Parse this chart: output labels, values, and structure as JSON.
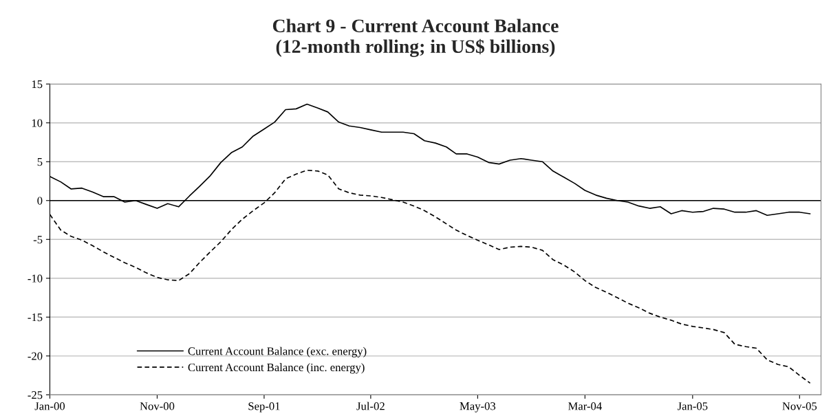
{
  "chart_data": {
    "type": "line",
    "title": "Chart 9 - Current Account Balance\n(12-month rolling; in US$ billions)",
    "x": [
      "2000-01",
      "2000-02",
      "2000-03",
      "2000-04",
      "2000-05",
      "2000-06",
      "2000-07",
      "2000-08",
      "2000-09",
      "2000-10",
      "2000-11",
      "2000-12",
      "2001-01",
      "2001-02",
      "2001-03",
      "2001-04",
      "2001-05",
      "2001-06",
      "2001-07",
      "2001-08",
      "2001-09",
      "2001-10",
      "2001-11",
      "2001-12",
      "2002-01",
      "2002-02",
      "2002-03",
      "2002-04",
      "2002-05",
      "2002-06",
      "2002-07",
      "2002-08",
      "2002-09",
      "2002-10",
      "2002-11",
      "2002-12",
      "2003-01",
      "2003-02",
      "2003-03",
      "2003-04",
      "2003-05",
      "2003-06",
      "2003-07",
      "2003-08",
      "2003-09",
      "2003-10",
      "2003-11",
      "2003-12",
      "2004-01",
      "2004-02",
      "2004-03",
      "2004-04",
      "2004-05",
      "2004-06",
      "2004-07",
      "2004-08",
      "2004-09",
      "2004-10",
      "2004-11",
      "2004-12",
      "2005-01",
      "2005-02",
      "2005-03",
      "2005-04",
      "2005-05",
      "2005-06",
      "2005-07",
      "2005-08",
      "2005-09",
      "2005-10",
      "2005-11",
      "2005-12"
    ],
    "series": [
      {
        "name": "Current Account Balance (exc. energy)",
        "color": "#000000",
        "line_style": "solid",
        "values": [
          3.1,
          2.4,
          1.5,
          1.6,
          1.1,
          0.5,
          0.5,
          -0.2,
          0,
          -0.5,
          -1.0,
          -0.4,
          -0.8,
          0.6,
          1.8,
          3.2,
          4.9,
          6.2,
          6.9,
          8.3,
          9.2,
          10.1,
          11.7,
          11.8,
          12.4,
          11.9,
          11.4,
          10.1,
          9.6,
          9.4,
          9.1,
          8.8,
          8.8,
          8.8,
          8.6,
          7.7,
          7.4,
          6.9,
          6.0,
          6.0,
          5.6,
          4.9,
          4.7,
          5.2,
          5.4,
          5.2,
          5.0,
          3.8,
          3.0,
          2.2,
          1.3,
          0.7,
          0.3,
          0,
          -0.2,
          -0.7,
          -1.0,
          -0.8,
          -1.7,
          -1.3,
          -1.5,
          -1.4,
          -1.0,
          -1.1,
          -1.5,
          -1.5,
          -1.3,
          -1.9,
          -1.7,
          -1.5,
          -1.5,
          -1.7
        ]
      },
      {
        "name": "Current Account Balance (inc. energy)",
        "color": "#000000",
        "line_style": "dashed",
        "values": [
          -1.8,
          -3.8,
          -4.6,
          -5.1,
          -5.8,
          -6.6,
          -7.3,
          -8.0,
          -8.6,
          -9.3,
          -9.9,
          -10.2,
          -10.3,
          -9.4,
          -8.0,
          -6.6,
          -5.3,
          -3.7,
          -2.4,
          -1.3,
          -0.3,
          1.0,
          2.8,
          3.4,
          3.9,
          3.8,
          3.3,
          1.5,
          1.0,
          0.7,
          0.6,
          0.4,
          0.1,
          -0.2,
          -0.7,
          -1.3,
          -2.1,
          -3.0,
          -3.8,
          -4.5,
          -5.1,
          -5.7,
          -6.3,
          -6.0,
          -5.9,
          -6.0,
          -6.4,
          -7.6,
          -8.3,
          -9.2,
          -10.3,
          -11.2,
          -11.8,
          -12.5,
          -13.2,
          -13.8,
          -14.5,
          -15.0,
          -15.4,
          -15.9,
          -16.2,
          -16.4,
          -16.6,
          -17.0,
          -18.5,
          -18.8,
          -19.0,
          -20.5,
          -21.1,
          -21.4,
          -22.5,
          -23.5
        ]
      }
    ],
    "xlim": [
      "2000-01",
      "2006-01"
    ],
    "xticks": [
      {
        "value": "2000-01",
        "label": "Jan-00"
      },
      {
        "value": "2000-11",
        "label": "Nov-00"
      },
      {
        "value": "2001-09",
        "label": "Sep-01"
      },
      {
        "value": "2002-07",
        "label": "Jul-02"
      },
      {
        "value": "2003-05",
        "label": "May-03"
      },
      {
        "value": "2004-03",
        "label": "Mar-04"
      },
      {
        "value": "2005-01",
        "label": "Jan-05"
      },
      {
        "value": "2005-11",
        "label": "Nov-05"
      }
    ],
    "ylim": [
      -25,
      15
    ],
    "yticks": [
      -25,
      -20,
      -15,
      -10,
      -5,
      0,
      5,
      10,
      15
    ],
    "ref_lines": [
      {
        "axis": "y",
        "value": 0,
        "color": "#000000"
      }
    ],
    "grid": "y",
    "legend": "bottom left",
    "marker": "none"
  }
}
